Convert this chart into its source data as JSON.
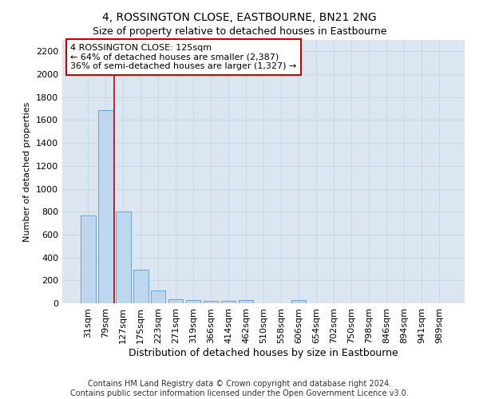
{
  "title": "4, ROSSINGTON CLOSE, EASTBOURNE, BN21 2NG",
  "subtitle": "Size of property relative to detached houses in Eastbourne",
  "xlabel": "Distribution of detached houses by size in Eastbourne",
  "ylabel": "Number of detached properties",
  "categories": [
    "31sqm",
    "79sqm",
    "127sqm",
    "175sqm",
    "223sqm",
    "271sqm",
    "319sqm",
    "366sqm",
    "414sqm",
    "462sqm",
    "510sqm",
    "558sqm",
    "606sqm",
    "654sqm",
    "702sqm",
    "750sqm",
    "798sqm",
    "846sqm",
    "894sqm",
    "941sqm",
    "989sqm"
  ],
  "values": [
    770,
    1685,
    800,
    295,
    110,
    38,
    28,
    20,
    18,
    25,
    0,
    0,
    25,
    0,
    0,
    0,
    0,
    0,
    0,
    0,
    0
  ],
  "bar_color": "#bdd7ee",
  "bar_edge_color": "#5b9bd5",
  "grid_color": "#c8d8e8",
  "background_color": "#dce6f1",
  "vline_x": 1.5,
  "vline_color": "#cc0000",
  "annotation_text": "4 ROSSINGTON CLOSE: 125sqm\n← 64% of detached houses are smaller (2,387)\n36% of semi-detached houses are larger (1,327) →",
  "annotation_box_color": "#ffffff",
  "annotation_box_edge": "#cc0000",
  "ylim": [
    0,
    2300
  ],
  "yticks": [
    0,
    200,
    400,
    600,
    800,
    1000,
    1200,
    1400,
    1600,
    1800,
    2000,
    2200
  ],
  "footer": "Contains HM Land Registry data © Crown copyright and database right 2024.\nContains public sector information licensed under the Open Government Licence v3.0.",
  "title_fontsize": 10,
  "subtitle_fontsize": 9,
  "xlabel_fontsize": 9,
  "ylabel_fontsize": 8,
  "tick_fontsize": 8,
  "annotation_fontsize": 8,
  "footer_fontsize": 7
}
